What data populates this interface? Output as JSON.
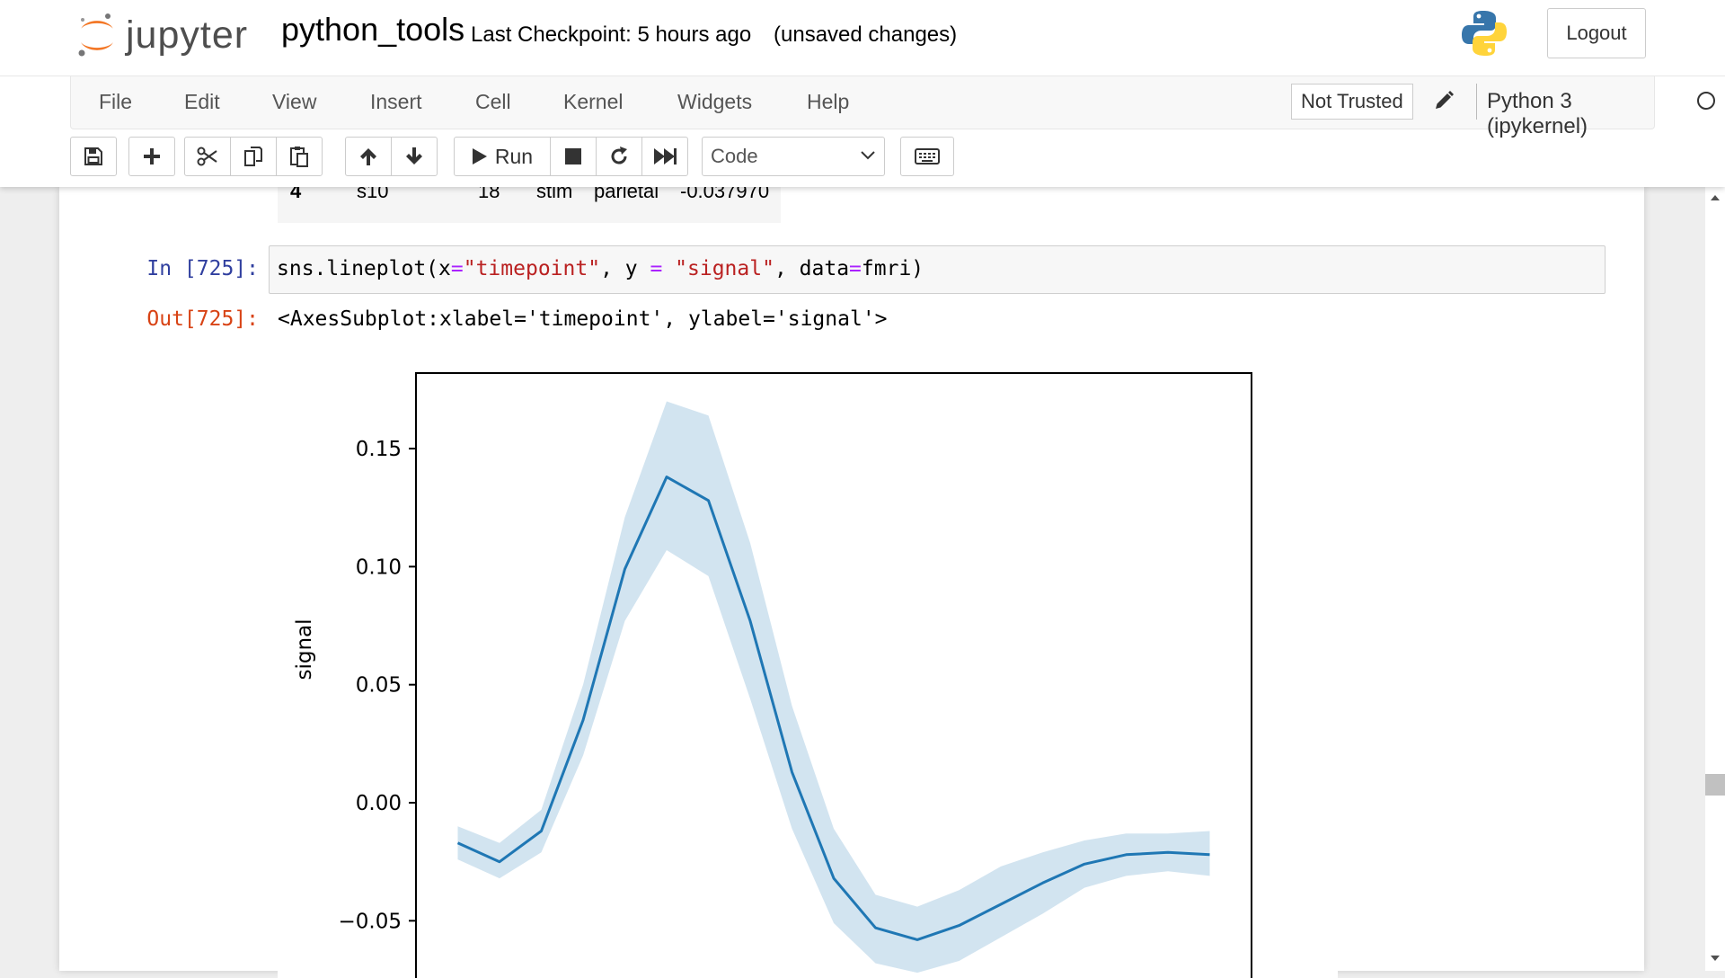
{
  "header": {
    "logo_text": "jupyter",
    "notebook_name": "python_tools",
    "checkpoint_text": "Last Checkpoint: 5 hours ago",
    "unsaved_text": "(unsaved changes)",
    "logout_label": "Logout"
  },
  "menubar": {
    "items": [
      "File",
      "Edit",
      "View",
      "Insert",
      "Cell",
      "Kernel",
      "Widgets",
      "Help"
    ],
    "trusted_label": "Not Trusted",
    "kernel_name": "Python 3 (ipykernel)"
  },
  "toolbar": {
    "buttons": [
      "save-icon",
      "plus-icon",
      "scissors-icon",
      "copy-icon",
      "paste-icon",
      "arrow-up-icon",
      "arrow-down-icon",
      "play-icon",
      "stop-icon",
      "restart-icon",
      "fast-forward-icon",
      "keyboard-icon"
    ],
    "run_label": "Run",
    "cell_type": "Code"
  },
  "notebook": {
    "prev_row": {
      "index": "4",
      "subject": "s10",
      "timepoint": "18",
      "event": "stim",
      "region": "parietal",
      "signal": "-0.037970"
    },
    "cell": {
      "in_prompt": "In [725]:",
      "out_prompt": "Out[725]:",
      "code": {
        "t1": "sns.lineplot(x",
        "t2": "=",
        "t3": "\"timepoint\"",
        "t4": ", y ",
        "t5": "=",
        "t6": " ",
        "t7": "\"signal\"",
        "t8": ", data",
        "t9": "=",
        "t10": "fmri)"
      },
      "output_text": "<AxesSubplot:xlabel='timepoint', ylabel='signal'>"
    }
  },
  "chart_data": {
    "type": "line",
    "ylabel": "signal",
    "ytick_labels": [
      "0.15",
      "0.10",
      "0.05",
      "0.00",
      "−0.05"
    ],
    "yticks": [
      0.15,
      0.1,
      0.05,
      0.0,
      -0.05
    ],
    "xlim": [
      -1,
      19
    ],
    "ylim": [
      -0.075,
      0.182
    ],
    "grid": false,
    "line_color": "#1f77b4",
    "band_color": "#1f77b4",
    "series": [
      {
        "x": [
          0,
          1,
          2,
          3,
          4,
          5,
          6,
          7,
          8,
          9,
          10,
          11,
          12,
          13,
          14,
          15,
          16,
          17,
          18
        ],
        "values": [
          -0.017,
          -0.025,
          -0.012,
          0.035,
          0.099,
          0.138,
          0.128,
          0.077,
          0.013,
          -0.032,
          -0.053,
          -0.058,
          -0.052,
          -0.043,
          -0.034,
          -0.026,
          -0.022,
          -0.021,
          -0.022
        ],
        "ci_upper": [
          -0.01,
          -0.017,
          -0.003,
          0.05,
          0.121,
          0.17,
          0.164,
          0.11,
          0.041,
          -0.011,
          -0.039,
          -0.044,
          -0.037,
          -0.027,
          -0.021,
          -0.016,
          -0.013,
          -0.013,
          -0.012
        ],
        "ci_lower": [
          -0.024,
          -0.032,
          -0.021,
          0.02,
          0.077,
          0.107,
          0.096,
          0.044,
          -0.011,
          -0.051,
          -0.068,
          -0.072,
          -0.067,
          -0.057,
          -0.047,
          -0.036,
          -0.031,
          -0.029,
          -0.031
        ]
      }
    ]
  }
}
